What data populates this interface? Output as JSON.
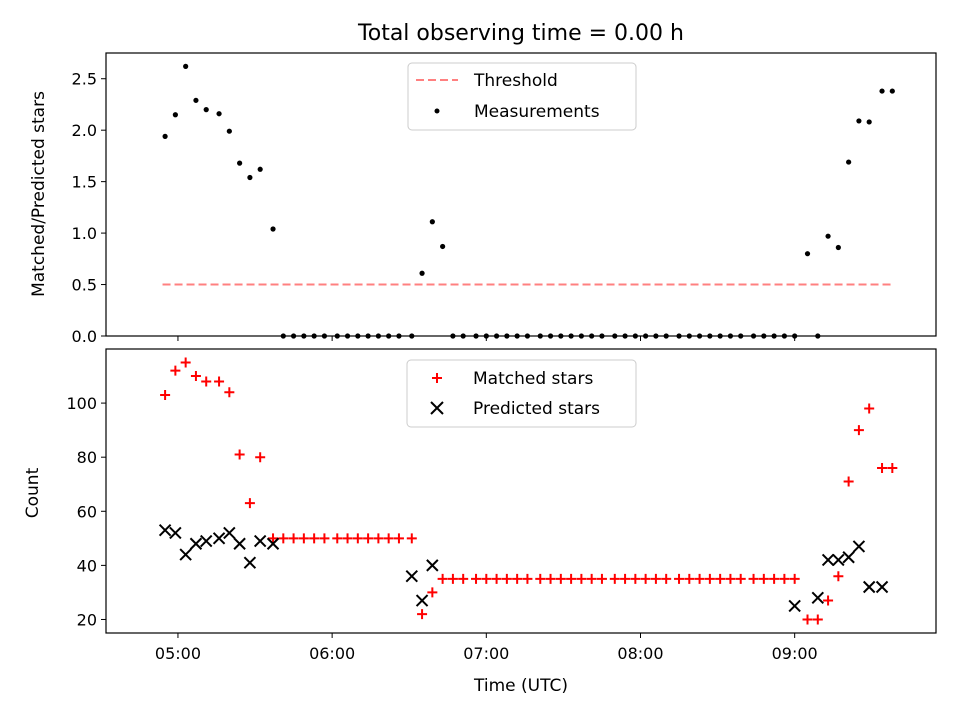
{
  "chart_data": [
    {
      "type": "scatter",
      "title": "Total observing time = 0.00 h",
      "xlabel": "",
      "ylabel": "Matched/Predicted stars",
      "xlim": [
        "04:32",
        "09:55"
      ],
      "ylim": [
        0,
        2.75
      ],
      "yticks": [
        "0.0",
        "0.5",
        "1.0",
        "1.5",
        "2.0",
        "2.5"
      ],
      "legend_position": "top-center",
      "threshold": {
        "name": "Threshold",
        "value": 0.5,
        "x_range": [
          "04:54",
          "09:38"
        ],
        "color": "#ff8080",
        "style": "dashed"
      },
      "series": [
        {
          "name": "Measurements",
          "marker": "dot",
          "color": "#000000",
          "x": [
            "04:55",
            "04:59",
            "05:03",
            "05:07",
            "05:11",
            "05:16",
            "05:20",
            "05:24",
            "05:28",
            "05:32",
            "05:37",
            "05:41",
            "05:45",
            "05:49",
            "05:53",
            "05:57",
            "06:02",
            "06:06",
            "06:10",
            "06:14",
            "06:18",
            "06:22",
            "06:26",
            "06:31",
            "06:35",
            "06:39",
            "06:43",
            "06:47",
            "06:51",
            "06:56",
            "07:00",
            "07:04",
            "07:08",
            "07:12",
            "07:16",
            "07:21",
            "07:25",
            "07:29",
            "07:33",
            "07:37",
            "07:41",
            "07:45",
            "07:50",
            "07:54",
            "07:58",
            "08:02",
            "08:06",
            "08:10",
            "08:15",
            "08:19",
            "08:23",
            "08:27",
            "08:31",
            "08:35",
            "08:39",
            "08:44",
            "08:48",
            "08:52",
            "08:56",
            "09:00",
            "09:05",
            "09:09",
            "09:13",
            "09:17",
            "09:21",
            "09:25",
            "09:29",
            "09:34",
            "09:38"
          ],
          "values": [
            1.94,
            2.15,
            2.62,
            2.29,
            2.2,
            2.16,
            1.99,
            1.68,
            1.54,
            1.62,
            1.04,
            0,
            0,
            0,
            0,
            0,
            0,
            0,
            0,
            0,
            0,
            0,
            0,
            0,
            0.61,
            1.11,
            0.87,
            0,
            0,
            0,
            0,
            0,
            0,
            0,
            0,
            0,
            0,
            0,
            0,
            0,
            0,
            0,
            0,
            0,
            0,
            0,
            0,
            0,
            0,
            0,
            0,
            0,
            0,
            0,
            0,
            0,
            0,
            0,
            0,
            0,
            0.8,
            0,
            0.97,
            0.86,
            1.69,
            2.09,
            2.08,
            2.38,
            2.38
          ]
        }
      ]
    },
    {
      "type": "scatter",
      "title": "",
      "xlabel": "Time (UTC)",
      "ylabel": "Count",
      "xlim": [
        "04:32",
        "09:55"
      ],
      "ylim": [
        15,
        120
      ],
      "yticks": [
        "20",
        "40",
        "60",
        "80",
        "100"
      ],
      "xticks": [
        "05:00",
        "06:00",
        "07:00",
        "08:00",
        "09:00"
      ],
      "legend_position": "top-center",
      "series": [
        {
          "name": "Matched stars",
          "marker": "plus",
          "color": "#ff0000",
          "x": [
            "04:55",
            "04:59",
            "05:03",
            "05:07",
            "05:11",
            "05:16",
            "05:20",
            "05:24",
            "05:28",
            "05:32",
            "05:37",
            "05:41",
            "05:45",
            "05:49",
            "05:53",
            "05:57",
            "06:02",
            "06:06",
            "06:10",
            "06:14",
            "06:18",
            "06:22",
            "06:26",
            "06:31",
            "06:35",
            "06:39",
            "06:43",
            "06:47",
            "06:51",
            "06:56",
            "07:00",
            "07:04",
            "07:08",
            "07:12",
            "07:16",
            "07:21",
            "07:25",
            "07:29",
            "07:33",
            "07:37",
            "07:41",
            "07:45",
            "07:50",
            "07:54",
            "07:58",
            "08:02",
            "08:06",
            "08:10",
            "08:15",
            "08:19",
            "08:23",
            "08:27",
            "08:31",
            "08:35",
            "08:39",
            "08:44",
            "08:48",
            "08:52",
            "08:56",
            "09:00",
            "09:05",
            "09:09",
            "09:13",
            "09:17",
            "09:21",
            "09:25",
            "09:29",
            "09:34",
            "09:38"
          ],
          "values": [
            103,
            112,
            115,
            110,
            108,
            108,
            104,
            81,
            63,
            80,
            50,
            50,
            50,
            50,
            50,
            50,
            50,
            50,
            50,
            50,
            50,
            50,
            50,
            50,
            22,
            30,
            35,
            35,
            35,
            35,
            35,
            35,
            35,
            35,
            35,
            35,
            35,
            35,
            35,
            35,
            35,
            35,
            35,
            35,
            35,
            35,
            35,
            35,
            35,
            35,
            35,
            35,
            35,
            35,
            35,
            35,
            35,
            35,
            35,
            35,
            20,
            20,
            27,
            36,
            71,
            90,
            98,
            76,
            76
          ]
        },
        {
          "name": "Predicted stars",
          "marker": "x",
          "color": "#000000",
          "x": [
            "04:55",
            "04:59",
            "05:03",
            "05:07",
            "05:11",
            "05:16",
            "05:20",
            "05:24",
            "05:28",
            "05:32",
            "05:37",
            "06:31",
            "06:35",
            "06:39",
            "09:00",
            "09:09",
            "09:13",
            "09:17",
            "09:21",
            "09:25",
            "09:29",
            "09:34"
          ],
          "values": [
            53,
            52,
            44,
            48,
            49,
            50,
            52,
            48,
            41,
            49,
            48,
            36,
            27,
            40,
            25,
            28,
            42,
            42,
            43,
            47,
            32,
            32
          ]
        }
      ]
    }
  ]
}
